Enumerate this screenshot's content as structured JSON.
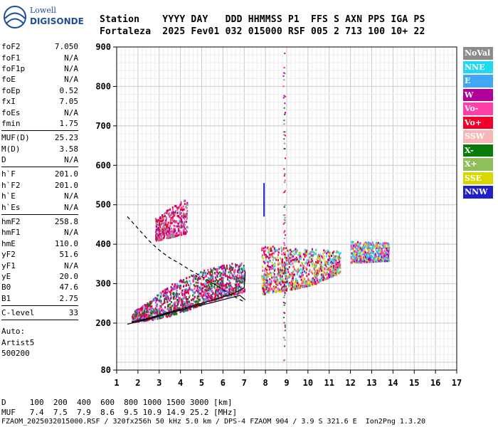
{
  "logo": {
    "line1": "Lowell",
    "line2": "DIGISONDE"
  },
  "header": {
    "line1": "Station    YYYY DAY   DDD HHMMSS P1  FFS S AXN PPS IGA PS",
    "line2": "Fortaleza  2025 Fev01 032 015000 RSF 005 2 713 100 10+ 22"
  },
  "parameters": [
    {
      "group": [
        {
          "name": "foF2",
          "value": "7.050"
        },
        {
          "name": "foF1",
          "value": "N/A"
        },
        {
          "name": "foF1p",
          "value": "N/A"
        },
        {
          "name": "foE",
          "value": "N/A"
        },
        {
          "name": "foEp",
          "value": "0.52"
        },
        {
          "name": "fxI",
          "value": "7.05"
        },
        {
          "name": "foEs",
          "value": "N/A"
        },
        {
          "name": "fmin",
          "value": "1.75"
        }
      ]
    },
    {
      "group": [
        {
          "name": "MUF(D)",
          "value": "25.23"
        },
        {
          "name": "M(D)",
          "value": "3.58"
        },
        {
          "name": "D",
          "value": "N/A"
        }
      ]
    },
    {
      "group": [
        {
          "name": "h`F",
          "value": "201.0"
        },
        {
          "name": "h`F2",
          "value": "201.0"
        },
        {
          "name": "h`E",
          "value": "N/A"
        },
        {
          "name": "h`Es",
          "value": "N/A"
        }
      ]
    },
    {
      "group": [
        {
          "name": "hmF2",
          "value": "258.8"
        },
        {
          "name": "hmF1",
          "value": "N/A"
        },
        {
          "name": "hmE",
          "value": "110.0"
        },
        {
          "name": "yF2",
          "value": "51.6"
        },
        {
          "name": "yF1",
          "value": "N/A"
        },
        {
          "name": "yE",
          "value": "20.0"
        },
        {
          "name": "B0",
          "value": "47.6"
        },
        {
          "name": "B1",
          "value": "2.75"
        }
      ]
    },
    {
      "group": [
        {
          "name": "C-level",
          "value": "33"
        }
      ]
    }
  ],
  "autoscaling": {
    "line1": "Auto:",
    "line2": "Artist5",
    "line3": "500200"
  },
  "legend": [
    {
      "label": "NoVal",
      "color": "#8c8c8c"
    },
    {
      "label": "NNE",
      "color": "#22d8f0"
    },
    {
      "label": "E",
      "color": "#3fa7f5"
    },
    {
      "label": "W",
      "color": "#b0009a"
    },
    {
      "label": "Vo-",
      "color": "#ff3fa8"
    },
    {
      "label": "Vo+",
      "color": "#f2002a"
    },
    {
      "label": "SSW",
      "color": "#f7b7b7"
    },
    {
      "label": "X-",
      "color": "#0a7a0a"
    },
    {
      "label": "X+",
      "color": "#8fbf5a"
    },
    {
      "label": "SSE",
      "color": "#d8d800"
    },
    {
      "label": "NNW",
      "color": "#2020c8"
    }
  ],
  "footer": {
    "line1": "D     100  200  400  600  800 1000 1500 3000 [km]",
    "line2": "MUF   7.4  7.5  7.9  8.6  9.5 10.9 14.9 25.2 [MHz]",
    "line3": "FZAOM_2025032015000.RSF / 320fx256h 50 kHz 5.0 km / DPS-4 FZAOM 904 / 3.9 S 321.6 E  Ion2Png 1.3.20"
  },
  "chart_data": {
    "type": "scatter",
    "title": "",
    "xlabel": "",
    "ylabel": "",
    "xlim": [
      1,
      17
    ],
    "ylim": [
      80,
      900
    ],
    "x_ticks": [
      1,
      2,
      3,
      4,
      5,
      6,
      7,
      8,
      9,
      10,
      11,
      12,
      13,
      14,
      15,
      16,
      17
    ],
    "y_ticks": [
      80,
      200,
      300,
      400,
      500,
      600,
      700,
      800,
      900
    ],
    "grid": true,
    "regions": [
      {
        "name": "F-trace-low",
        "color_mix": [
          "#b0009a",
          "#f2002a",
          "#ff3fa8",
          "#3fa7f5",
          "#0a7a0a"
        ],
        "fmin": 1.7,
        "fmax": 7.0,
        "hlow": [
          205,
          210,
          220,
          235,
          255,
          270,
          280
        ],
        "hhigh": [
          230,
          260,
          300,
          320,
          340,
          350,
          360
        ]
      },
      {
        "name": "F-spread",
        "color_mix": [
          "#b0009a",
          "#ff3fa8",
          "#d8d800",
          "#f2002a",
          "#22d8f0",
          "#8fbf5a"
        ],
        "fmin": 7.8,
        "fmax": 11.5,
        "hlow": [
          275,
          285,
          300,
          330
        ],
        "hhigh": [
          400,
          395,
          390,
          385
        ]
      },
      {
        "name": "F-spread-high",
        "color_mix": [
          "#b0009a",
          "#22d8f0",
          "#3fa7f5",
          "#ff3fa8",
          "#d8d800"
        ],
        "fmin": 12.0,
        "fmax": 13.8,
        "hlow": [
          355,
          360
        ],
        "hhigh": [
          410,
          405
        ]
      },
      {
        "name": "second-hop",
        "color_mix": [
          "#b0009a",
          "#ff3fa8",
          "#f2002a",
          "#8c8c8c"
        ],
        "fmin": 2.8,
        "fmax": 4.3,
        "hlow": [
          410,
          430
        ],
        "hhigh": [
          470,
          520
        ]
      }
    ],
    "profile_solid": [
      [
        1.5,
        197
      ],
      [
        2.5,
        210
      ],
      [
        3.5,
        225
      ],
      [
        4.5,
        240
      ],
      [
        5.5,
        252
      ],
      [
        6.2,
        262
      ],
      [
        6.8,
        270
      ],
      [
        7.05,
        259
      ]
    ],
    "profile_dashed": [
      [
        1.5,
        470
      ],
      [
        2.0,
        440
      ],
      [
        2.5,
        410
      ],
      [
        3.0,
        385
      ],
      [
        3.5,
        365
      ],
      [
        4.0,
        350
      ],
      [
        4.5,
        333
      ],
      [
        5.0,
        318
      ],
      [
        5.5,
        302
      ],
      [
        6.0,
        285
      ],
      [
        6.5,
        268
      ],
      [
        7.0,
        254
      ]
    ],
    "f2_trace": [
      [
        1.7,
        203
      ],
      [
        2.5,
        212
      ],
      [
        3.5,
        228
      ],
      [
        4.5,
        243
      ],
      [
        5.5,
        258
      ],
      [
        6.5,
        275
      ],
      [
        7.0,
        290
      ],
      [
        7.05,
        330
      ]
    ]
  }
}
